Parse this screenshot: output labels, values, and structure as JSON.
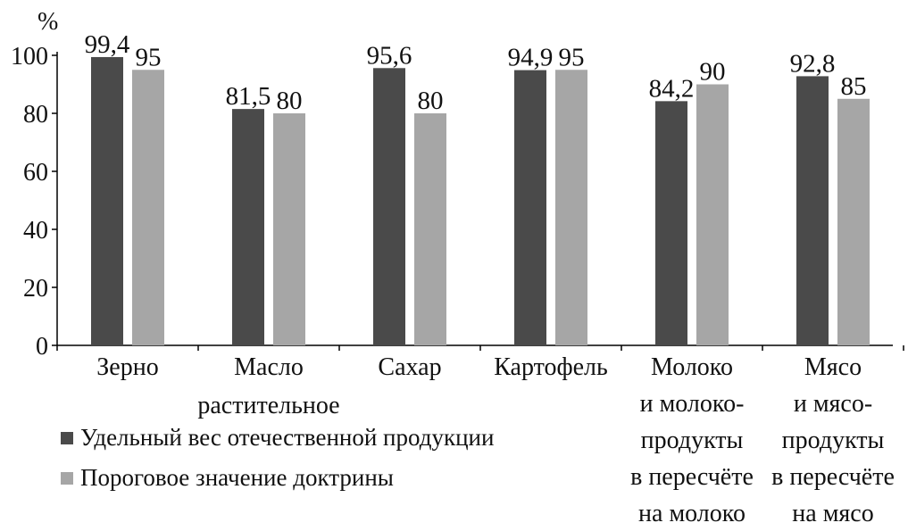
{
  "chart_data": {
    "type": "bar",
    "title": "",
    "ylabel": "%",
    "xlabel": "",
    "ylim": [
      0,
      100
    ],
    "yticks": [
      0,
      20,
      40,
      60,
      80,
      100
    ],
    "grid": false,
    "legend_position": "bottom-left",
    "categories": [
      [
        "Зерно"
      ],
      [
        "Масло",
        "растительное"
      ],
      [
        "Сахар"
      ],
      [
        "Картофель"
      ],
      [
        "Молоко",
        "и молоко-",
        "продукты",
        "в пересчёте",
        "на молоко"
      ],
      [
        "Мясо",
        "и мясо-",
        "продукты",
        "в пересчёте",
        "на мясо"
      ]
    ],
    "series": [
      {
        "name": "Удельный вес отечественной продукции",
        "color": "#4a4a4a",
        "values": [
          99.4,
          81.5,
          95.6,
          94.9,
          84.2,
          92.8
        ],
        "labels": [
          "99,4",
          "81,5",
          "95,6",
          "94,9",
          "84,2",
          "92,8"
        ]
      },
      {
        "name": "Пороговое значение доктрины",
        "color": "#a6a6a6",
        "values": [
          95,
          80,
          80,
          95,
          90,
          85
        ],
        "labels": [
          "95",
          "80",
          "80",
          "95",
          "90",
          "85"
        ]
      }
    ]
  }
}
